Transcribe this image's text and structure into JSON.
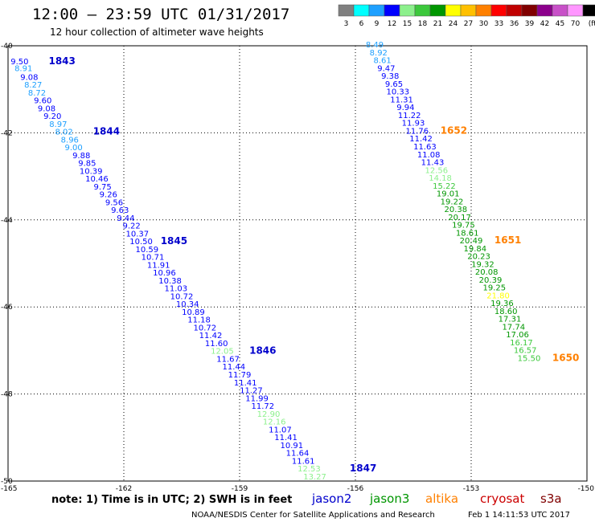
{
  "title": "12:00 – 23:59 UTC 01/31/2017",
  "subtitle": "12 hour collection of altimeter wave heights",
  "note": "note:  1) Time is in UTC; 2) SWH is in feet",
  "footer_left": "NOAA/NESDIS Center for Satellite Applications and Research",
  "footer_right": "Feb  1 14:11:53 UTC 2017",
  "colorbar": {
    "labels": [
      "3",
      "6",
      "9",
      "12",
      "15",
      "18",
      "21",
      "24",
      "27",
      "30",
      "33",
      "36",
      "39",
      "42",
      "45",
      "70",
      "(ft)"
    ],
    "colors": [
      "#808080",
      "#00ffff",
      "#1ea0ff",
      "#0000ff",
      "#8cf08c",
      "#3cc83c",
      "#009600",
      "#ffff00",
      "#ffc000",
      "#ff8000",
      "#ff0000",
      "#c00000",
      "#800000",
      "#8c008c",
      "#c850c8",
      "#ff96ff",
      "#000000"
    ]
  },
  "legend": [
    {
      "name": "jason2",
      "color": "#0000cc"
    },
    {
      "name": "jason3",
      "color": "#009600"
    },
    {
      "name": "altika",
      "color": "#ff8000"
    },
    {
      "name": "cryosat",
      "color": "#cc0000"
    },
    {
      "name": "s3a",
      "color": "#800000"
    }
  ],
  "chart_data": {
    "type": "scatter",
    "xlim": [
      -165,
      -150
    ],
    "ylim": [
      -50,
      -40
    ],
    "xticks": [
      "-165",
      "-162",
      "-159",
      "-156",
      "-153",
      "-150"
    ],
    "yticks": [
      "-40",
      "-42",
      "-44",
      "-46",
      "-48",
      "-50"
    ],
    "grid": true,
    "points": [
      {
        "x": -164.7,
        "y": -40.42,
        "v": "9.50",
        "c": "#0000ff"
      },
      {
        "x": -164.6,
        "y": -40.58,
        "v": "8.91",
        "c": "#1ea0ff"
      },
      {
        "x": -164.45,
        "y": -40.78,
        "v": "9.08",
        "c": "#0000ff"
      },
      {
        "x": -164.35,
        "y": -40.96,
        "v": "8.27",
        "c": "#1ea0ff"
      },
      {
        "x": -164.25,
        "y": -41.14,
        "v": "8.72",
        "c": "#1ea0ff"
      },
      {
        "x": -164.1,
        "y": -41.32,
        "v": "9.60",
        "c": "#0000ff"
      },
      {
        "x": -164.0,
        "y": -41.5,
        "v": "9.08",
        "c": "#0000ff"
      },
      {
        "x": -163.85,
        "y": -41.68,
        "v": "9.20",
        "c": "#0000ff"
      },
      {
        "x": -163.7,
        "y": -41.86,
        "v": "8.97",
        "c": "#1ea0ff"
      },
      {
        "x": -163.55,
        "y": -42.04,
        "v": "8.02",
        "c": "#1ea0ff"
      },
      {
        "x": -163.4,
        "y": -42.22,
        "v": "8.96",
        "c": "#1ea0ff"
      },
      {
        "x": -163.3,
        "y": -42.4,
        "v": "9.00",
        "c": "#1ea0ff"
      },
      {
        "x": -163.1,
        "y": -42.58,
        "v": "9.88",
        "c": "#0000ff"
      },
      {
        "x": -162.95,
        "y": -42.76,
        "v": "9.85",
        "c": "#0000ff"
      },
      {
        "x": -162.85,
        "y": -42.94,
        "v": "10.39",
        "c": "#0000ff"
      },
      {
        "x": -162.7,
        "y": -43.12,
        "v": "10.46",
        "c": "#0000ff"
      },
      {
        "x": -162.55,
        "y": -43.3,
        "v": "9.75",
        "c": "#0000ff"
      },
      {
        "x": -162.4,
        "y": -43.48,
        "v": "9.26",
        "c": "#0000ff"
      },
      {
        "x": -162.25,
        "y": -43.66,
        "v": "9.56",
        "c": "#0000ff"
      },
      {
        "x": -162.1,
        "y": -43.84,
        "v": "9.63",
        "c": "#0000ff"
      },
      {
        "x": -161.95,
        "y": -44.02,
        "v": "9.44",
        "c": "#0000ff"
      },
      {
        "x": -161.8,
        "y": -44.2,
        "v": "9.22",
        "c": "#0000ff"
      },
      {
        "x": -161.65,
        "y": -44.38,
        "v": "10.37",
        "c": "#0000ff"
      },
      {
        "x": -161.55,
        "y": -44.56,
        "v": "10.50",
        "c": "#0000ff"
      },
      {
        "x": -161.4,
        "y": -44.74,
        "v": "10.59",
        "c": "#0000ff"
      },
      {
        "x": -161.25,
        "y": -44.92,
        "v": "10.71",
        "c": "#0000ff"
      },
      {
        "x": -161.1,
        "y": -45.1,
        "v": "11.91",
        "c": "#0000ff"
      },
      {
        "x": -160.95,
        "y": -45.28,
        "v": "10.96",
        "c": "#0000ff"
      },
      {
        "x": -160.8,
        "y": -45.46,
        "v": "10.38",
        "c": "#0000ff"
      },
      {
        "x": -160.65,
        "y": -45.64,
        "v": "11.03",
        "c": "#0000ff"
      },
      {
        "x": -160.5,
        "y": -45.82,
        "v": "10.72",
        "c": "#0000ff"
      },
      {
        "x": -160.35,
        "y": -46.0,
        "v": "10.34",
        "c": "#0000ff"
      },
      {
        "x": -160.2,
        "y": -46.18,
        "v": "10.89",
        "c": "#0000ff"
      },
      {
        "x": -160.05,
        "y": -46.36,
        "v": "11.18",
        "c": "#0000ff"
      },
      {
        "x": -159.9,
        "y": -46.54,
        "v": "10.72",
        "c": "#0000ff"
      },
      {
        "x": -159.75,
        "y": -46.72,
        "v": "11.42",
        "c": "#0000ff"
      },
      {
        "x": -159.6,
        "y": -46.9,
        "v": "11.60",
        "c": "#0000ff"
      },
      {
        "x": -159.45,
        "y": -47.08,
        "v": "12.05",
        "c": "#8cf08c"
      },
      {
        "x": -159.3,
        "y": -47.26,
        "v": "11.67",
        "c": "#0000ff"
      },
      {
        "x": -159.15,
        "y": -47.44,
        "v": "11.44",
        "c": "#0000ff"
      },
      {
        "x": -159.0,
        "y": -47.62,
        "v": "11.79",
        "c": "#0000ff"
      },
      {
        "x": -158.85,
        "y": -47.8,
        "v": "11.41",
        "c": "#0000ff"
      },
      {
        "x": -158.7,
        "y": -47.98,
        "v": "11.27",
        "c": "#0000ff"
      },
      {
        "x": -158.55,
        "y": -48.16,
        "v": "11.99",
        "c": "#0000ff"
      },
      {
        "x": -158.4,
        "y": -48.34,
        "v": "11.72",
        "c": "#0000ff"
      },
      {
        "x": -158.25,
        "y": -48.52,
        "v": "12.90",
        "c": "#8cf08c"
      },
      {
        "x": -158.1,
        "y": -48.7,
        "v": "12.16",
        "c": "#8cf08c"
      },
      {
        "x": -157.95,
        "y": -48.88,
        "v": "11.07",
        "c": "#0000ff"
      },
      {
        "x": -157.8,
        "y": -49.06,
        "v": "11.41",
        "c": "#0000ff"
      },
      {
        "x": -157.65,
        "y": -49.24,
        "v": "10.91",
        "c": "#0000ff"
      },
      {
        "x": -157.5,
        "y": -49.42,
        "v": "11.64",
        "c": "#0000ff"
      },
      {
        "x": -157.35,
        "y": -49.6,
        "v": "11.61",
        "c": "#0000ff"
      },
      {
        "x": -157.2,
        "y": -49.78,
        "v": "12.53",
        "c": "#8cf08c"
      },
      {
        "x": -157.05,
        "y": -49.96,
        "v": "13.27",
        "c": "#8cf08c"
      },
      {
        "x": -155.5,
        "y": -40.04,
        "v": "8.49",
        "c": "#1ea0ff"
      },
      {
        "x": -155.4,
        "y": -40.22,
        "v": "8.92",
        "c": "#1ea0ff"
      },
      {
        "x": -155.3,
        "y": -40.4,
        "v": "8.61",
        "c": "#1ea0ff"
      },
      {
        "x": -155.2,
        "y": -40.58,
        "v": "9.47",
        "c": "#0000ff"
      },
      {
        "x": -155.1,
        "y": -40.76,
        "v": "9.38",
        "c": "#0000ff"
      },
      {
        "x": -155.0,
        "y": -40.94,
        "v": "9.65",
        "c": "#0000ff"
      },
      {
        "x": -154.9,
        "y": -41.12,
        "v": "10.33",
        "c": "#0000ff"
      },
      {
        "x": -154.8,
        "y": -41.3,
        "v": "11.31",
        "c": "#0000ff"
      },
      {
        "x": -154.7,
        "y": -41.48,
        "v": "9.94",
        "c": "#0000ff"
      },
      {
        "x": -154.6,
        "y": -41.66,
        "v": "11.22",
        "c": "#0000ff"
      },
      {
        "x": -154.5,
        "y": -41.84,
        "v": "11.93",
        "c": "#0000ff"
      },
      {
        "x": -154.4,
        "y": -42.02,
        "v": "11.76",
        "c": "#0000ff"
      },
      {
        "x": -154.3,
        "y": -42.2,
        "v": "11.42",
        "c": "#0000ff"
      },
      {
        "x": -154.2,
        "y": -42.38,
        "v": "11.63",
        "c": "#0000ff"
      },
      {
        "x": -154.1,
        "y": -42.56,
        "v": "11.08",
        "c": "#0000ff"
      },
      {
        "x": -154.0,
        "y": -42.74,
        "v": "11.43",
        "c": "#0000ff"
      },
      {
        "x": -153.9,
        "y": -42.92,
        "v": "12.56",
        "c": "#8cf08c"
      },
      {
        "x": -153.8,
        "y": -43.1,
        "v": "14.18",
        "c": "#8cf08c"
      },
      {
        "x": -153.7,
        "y": -43.28,
        "v": "15.22",
        "c": "#3cc83c"
      },
      {
        "x": -153.6,
        "y": -43.46,
        "v": "19.01",
        "c": "#009600"
      },
      {
        "x": -153.5,
        "y": -43.64,
        "v": "19.22",
        "c": "#009600"
      },
      {
        "x": -153.4,
        "y": -43.82,
        "v": "20.38",
        "c": "#009600"
      },
      {
        "x": -153.3,
        "y": -44.0,
        "v": "20.17",
        "c": "#009600"
      },
      {
        "x": -153.2,
        "y": -44.18,
        "v": "19.75",
        "c": "#009600"
      },
      {
        "x": -153.1,
        "y": -44.36,
        "v": "18.61",
        "c": "#009600"
      },
      {
        "x": -153.0,
        "y": -44.54,
        "v": "20.49",
        "c": "#009600"
      },
      {
        "x": -152.9,
        "y": -44.72,
        "v": "19.84",
        "c": "#009600"
      },
      {
        "x": -152.8,
        "y": -44.9,
        "v": "20.23",
        "c": "#009600"
      },
      {
        "x": -152.7,
        "y": -45.08,
        "v": "19.32",
        "c": "#009600"
      },
      {
        "x": -152.6,
        "y": -45.26,
        "v": "20.08",
        "c": "#009600"
      },
      {
        "x": -152.5,
        "y": -45.44,
        "v": "20.39",
        "c": "#009600"
      },
      {
        "x": -152.4,
        "y": -45.62,
        "v": "19.25",
        "c": "#009600"
      },
      {
        "x": -152.3,
        "y": -45.8,
        "v": "21.80",
        "c": "#ffff00"
      },
      {
        "x": -152.2,
        "y": -45.98,
        "v": "19.36",
        "c": "#009600"
      },
      {
        "x": -152.1,
        "y": -46.16,
        "v": "18.60",
        "c": "#009600"
      },
      {
        "x": -152.0,
        "y": -46.34,
        "v": "17.31",
        "c": "#009600"
      },
      {
        "x": -151.9,
        "y": -46.52,
        "v": "17.74",
        "c": "#009600"
      },
      {
        "x": -151.8,
        "y": -46.7,
        "v": "17.06",
        "c": "#009600"
      },
      {
        "x": -151.7,
        "y": -46.88,
        "v": "16.17",
        "c": "#3cc83c"
      },
      {
        "x": -151.6,
        "y": -47.06,
        "v": "16.57",
        "c": "#3cc83c"
      },
      {
        "x": -151.5,
        "y": -47.24,
        "v": "15.50",
        "c": "#3cc83c"
      }
    ],
    "time_labels": [
      {
        "x": -163.6,
        "y": -40.42,
        "t": "1843",
        "c": "#0000cc"
      },
      {
        "x": -162.45,
        "y": -42.04,
        "t": "1844",
        "c": "#0000cc"
      },
      {
        "x": -160.7,
        "y": -44.56,
        "t": "1845",
        "c": "#0000cc"
      },
      {
        "x": -158.4,
        "y": -47.08,
        "t": "1846",
        "c": "#0000cc"
      },
      {
        "x": -155.8,
        "y": -49.78,
        "t": "1847",
        "c": "#0000cc"
      },
      {
        "x": -153.45,
        "y": -42.02,
        "t": "1652",
        "c": "#ff8000"
      },
      {
        "x": -152.05,
        "y": -44.54,
        "t": "1651",
        "c": "#ff8000"
      },
      {
        "x": -150.55,
        "y": -47.24,
        "t": "1650",
        "c": "#ff8000"
      }
    ]
  }
}
